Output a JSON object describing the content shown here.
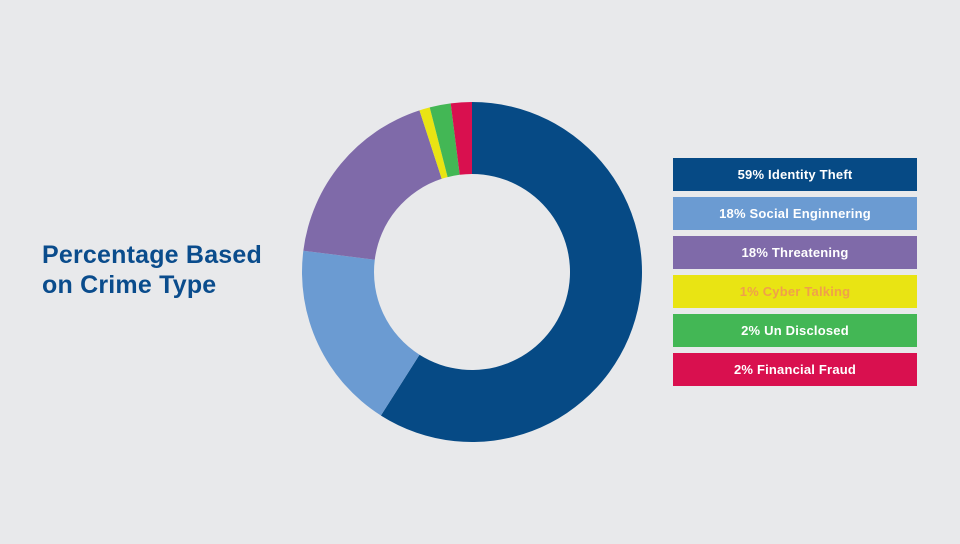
{
  "title_line1": "Percentage Based",
  "title_line2": "on Crime Type",
  "chart_data": {
    "type": "pie",
    "donut": true,
    "title": "Percentage Based on Crime Type",
    "categories": [
      "Identity Theft",
      "Social Enginnering",
      "Threatening",
      "Cyber Talking",
      "Un Disclosed",
      "Financial Fraud"
    ],
    "values": [
      59,
      18,
      18,
      1,
      2,
      2
    ],
    "colors": [
      "#064a85",
      "#6b9bd2",
      "#7f6aa9",
      "#e9e413",
      "#43b755",
      "#d9104f"
    ],
    "legend_labels": [
      "59% Identity Theft",
      "18% Social Enginnering",
      "18% Threatening",
      "1% Cyber Talking",
      "2% Un Disclosed",
      "2% Financial Fraud"
    ],
    "legend_text_colors": [
      "#ffffff",
      "#ffffff",
      "#ffffff",
      "#f0a04a",
      "#ffffff",
      "#ffffff"
    ],
    "legend_placement": "right"
  }
}
